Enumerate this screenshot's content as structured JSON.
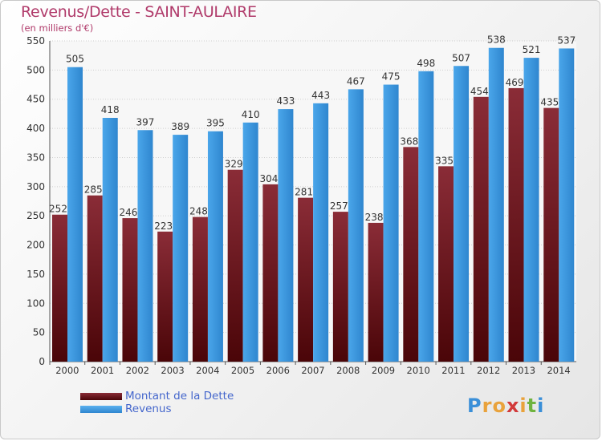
{
  "title": "Revenus/Dette - SAINT-AULAIRE",
  "subtitle": "(en milliers d'€)",
  "logo": {
    "text": "Proxiti",
    "colors": [
      "#3a8fd8",
      "#e9a23b",
      "#e9a23b",
      "#d23a3a",
      "#e9a23b",
      "#6fb33f",
      "#3a8fd8"
    ]
  },
  "colors": {
    "dette": "#7a1f2b",
    "revenus": "#3f9be0",
    "title": "#b03a6a",
    "legend_text": "#4466cc"
  },
  "chart_data": {
    "type": "bar",
    "categories": [
      "2000",
      "2001",
      "2002",
      "2003",
      "2004",
      "2005",
      "2006",
      "2007",
      "2008",
      "2009",
      "2010",
      "2011",
      "2012",
      "2013",
      "2014"
    ],
    "series": [
      {
        "name": "Montant de la Dette",
        "values": [
          252,
          285,
          246,
          223,
          248,
          329,
          304,
          281,
          257,
          238,
          368,
          335,
          454,
          469,
          435
        ]
      },
      {
        "name": "Revenus",
        "values": [
          505,
          418,
          397,
          389,
          395,
          410,
          433,
          443,
          467,
          475,
          498,
          507,
          538,
          521,
          537
        ]
      }
    ],
    "ylim": [
      0,
      550
    ],
    "yticks": [
      0,
      50,
      100,
      150,
      200,
      250,
      300,
      350,
      400,
      450,
      500,
      550
    ],
    "grid": true,
    "legend_position": "bottom-left"
  }
}
